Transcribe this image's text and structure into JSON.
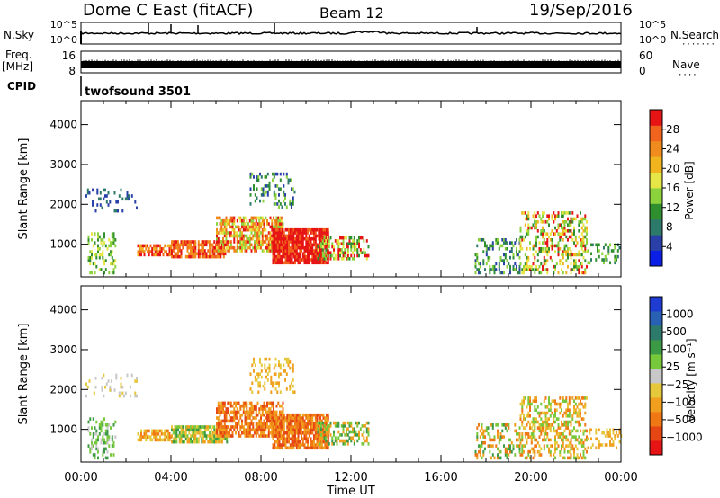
{
  "header": {
    "station": "Dome C East (fitACF)",
    "beam": "Beam 12",
    "date": "19/Sep/2016"
  },
  "side_labels": {
    "nsky": "N.Sky",
    "nsearch": "N.Search",
    "nsearch_dots": "·······",
    "freq_line1": "Freq.",
    "freq_line2": "[MHz]",
    "nave": "Nave",
    "nave_dots": "····",
    "cpid": "CPID"
  },
  "cpid_value": "twofsound 3501",
  "chart_data": [
    {
      "type": "line",
      "name": "noise",
      "left_ticks": [
        "10^5",
        "10^0"
      ],
      "right_ticks": [
        "10^5",
        "10^0"
      ]
    },
    {
      "type": "bar",
      "name": "freq-nave",
      "left_ticks": [
        "16",
        "8"
      ],
      "right_ticks": [
        "60",
        "0"
      ]
    },
    {
      "type": "heatmap",
      "name": "power",
      "ylabel": "Slant Range [km]",
      "y_ticks": [
        1000,
        2000,
        3000,
        4000
      ],
      "ylim": [
        180,
        4600
      ],
      "xlim": [
        0,
        24
      ],
      "colorbar": {
        "label": "Power [dB]",
        "ticks": [
          "4",
          "8",
          "12",
          "16",
          "20",
          "24",
          "28"
        ],
        "colors": [
          "#0a1ee6",
          "#2840a8",
          "#2e7a6a",
          "#2f8f2f",
          "#8cd23c",
          "#e6e646",
          "#f0b41e",
          "#f08c1e",
          "#f0641e",
          "#e61414"
        ]
      }
    },
    {
      "type": "heatmap",
      "name": "velocity",
      "ylabel": "Slant Range [km]",
      "xlabel": "Time UT",
      "x_ticks": [
        "00:00",
        "04:00",
        "08:00",
        "12:00",
        "16:00",
        "20:00",
        "00:00"
      ],
      "y_ticks": [
        1000,
        2000,
        3000,
        4000
      ],
      "ylim": [
        180,
        4600
      ],
      "xlim": [
        0,
        24
      ],
      "colorbar": {
        "label": "Velocity [m s⁻¹]",
        "ticks": [
          "1000",
          "500",
          "100",
          "25",
          "−25",
          "−100",
          "−500",
          "−1000"
        ],
        "colors": [
          "#1e3cd2",
          "#2860b4",
          "#2e7a6a",
          "#3c9a46",
          "#78c83c",
          "#c8c8c8",
          "#e6c83c",
          "#f0a01e",
          "#f07814",
          "#e64614",
          "#e61414"
        ]
      }
    }
  ]
}
